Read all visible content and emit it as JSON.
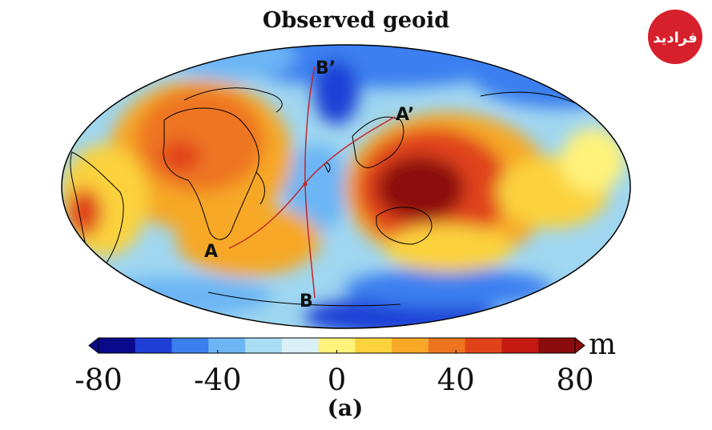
{
  "map": {
    "title": "Observed geoid",
    "projection": "Mollweide",
    "panel_label": "(a)",
    "profile_points": [
      "A",
      "A’",
      "B",
      "B’"
    ],
    "profiles": [
      {
        "from": "A",
        "to": "A’"
      },
      {
        "from": "B",
        "to": "B’"
      }
    ]
  },
  "colorbar": {
    "unit": "m",
    "min": -80,
    "max": 80,
    "tick_labels": [
      "-80",
      "-40",
      "0",
      "40",
      "80"
    ],
    "colors": [
      "#0a0a8c",
      "#1f3fd6",
      "#3b7ff0",
      "#6cb6f5",
      "#a9ddf3",
      "#d8f0f6",
      "#fff27a",
      "#fbd23c",
      "#f6a826",
      "#ee7420",
      "#e0431a",
      "#c41a12",
      "#8b0c0c"
    ]
  },
  "logo": {
    "text": "فرادید",
    "color": "#d6202b"
  }
}
